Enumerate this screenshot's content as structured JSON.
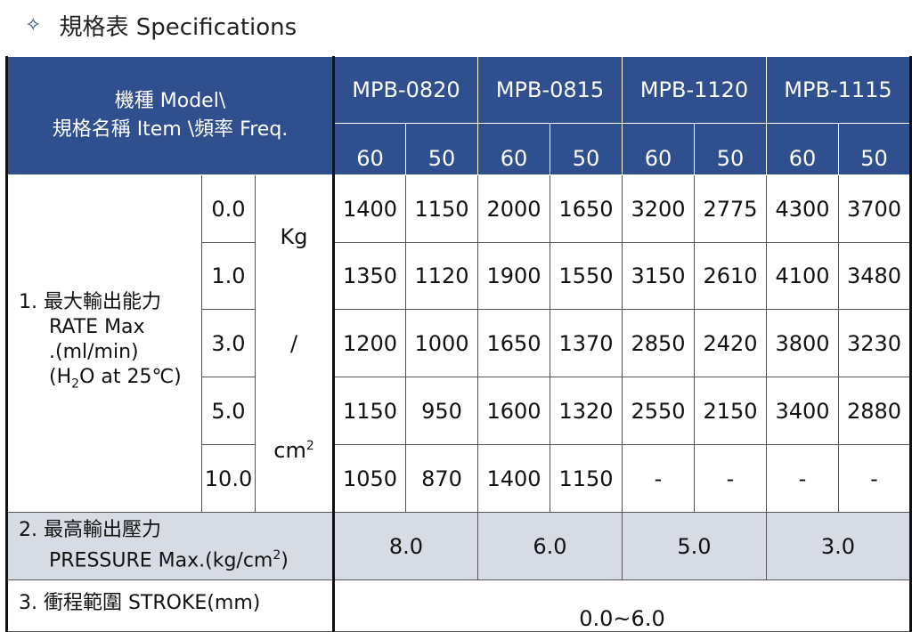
{
  "title": {
    "icon": "diamond-star-icon",
    "text": "規格表 Specifications"
  },
  "header": {
    "label_line1": "機種 Model\\",
    "label_line2": "規格名稱 Item \\頻率 Freq.",
    "models": [
      "MPB-0820",
      "MPB-0815",
      "MPB-1120",
      "MPB-1115"
    ],
    "freqs": [
      "60",
      "50",
      "60",
      "50",
      "60",
      "50",
      "60",
      "50"
    ]
  },
  "rate": {
    "label_line1": "1.  最大輸出能力",
    "label_line2": "RATE Max",
    "label_line3": ".(ml/min)",
    "label_line4_a": "(H",
    "label_line4_sub": "2",
    "label_line4_b": "O at 25℃)",
    "unit_top": "Kg",
    "unit_mid": "/",
    "unit_bot": "cm",
    "unit_sup": "2",
    "rows": [
      {
        "pressure": "0.0",
        "values": [
          "1400",
          "1150",
          "2000",
          "1650",
          "3200",
          "2775",
          "4300",
          "3700"
        ]
      },
      {
        "pressure": "1.0",
        "values": [
          "1350",
          "1120",
          "1900",
          "1550",
          "3150",
          "2610",
          "4100",
          "3480"
        ]
      },
      {
        "pressure": "3.0",
        "values": [
          "1200",
          "1000",
          "1650",
          "1370",
          "2850",
          "2420",
          "3800",
          "3230"
        ]
      },
      {
        "pressure": "5.0",
        "values": [
          "1150",
          "950",
          "1600",
          "1320",
          "2550",
          "2150",
          "3400",
          "2880"
        ]
      },
      {
        "pressure": "10.0",
        "values": [
          "1050",
          "870",
          "1400",
          "1150",
          "-",
          "-",
          "-",
          "-"
        ]
      }
    ]
  },
  "pressure_max": {
    "label_line1": "2.  最高輸出壓力",
    "label_line2": "PRESSURE Max.(kg/cm",
    "label_sup": "2",
    "label_end": ")",
    "values": [
      "8.0",
      "6.0",
      "5.0",
      "3.0"
    ]
  },
  "stroke": {
    "label": "3.  衝程範圍  STROKE(mm)",
    "value": "0.0~6.0"
  }
}
